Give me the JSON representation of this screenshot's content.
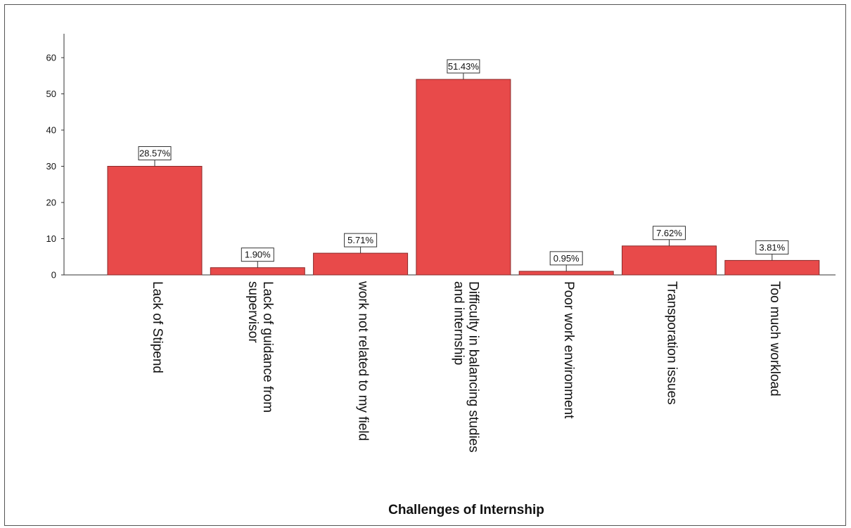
{
  "chart_data": {
    "type": "bar",
    "title": "",
    "xlabel": "Challenges of Internship",
    "ylabel": "",
    "ylim": [
      0,
      65
    ],
    "yticks": [
      0,
      10,
      20,
      30,
      40,
      50,
      60
    ],
    "grid": false,
    "bar_color": "#e84a4a",
    "categories": [
      [
        "Lack of Stipend"
      ],
      [
        "Lack of guidance from",
        "supervisor"
      ],
      [
        "work not related to my field"
      ],
      [
        "Difficulty in balancing studies",
        "and internship"
      ],
      [
        "Poor work environment"
      ],
      [
        "Transporation issues"
      ],
      [
        "Too much workload"
      ]
    ],
    "values": [
      30,
      2,
      6,
      54,
      1,
      8,
      4
    ],
    "percent_labels": [
      "28.57%",
      "1.90%",
      "5.71%",
      "51.43%",
      "0.95%",
      "7.62%",
      "3.81%"
    ]
  }
}
